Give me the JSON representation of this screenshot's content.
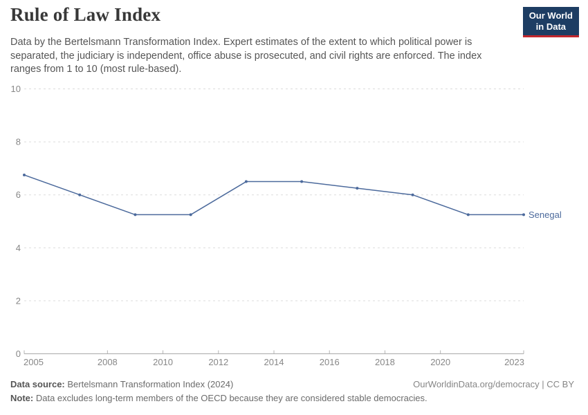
{
  "header": {
    "title": "Rule of Law Index",
    "subtitle": "Data by the Bertelsmann Transformation Index. Expert estimates of the extent to which political power is separated, the judiciary is independent, office abuse is prosecuted, and civil rights are enforced. The index ranges from 1 to 10 (most rule-based).",
    "logo": {
      "line1": "Our World",
      "line2": "in Data",
      "bg_color": "#1d3d63",
      "accent_color": "#c1272d"
    }
  },
  "chart_data": {
    "type": "line",
    "title": "Rule of Law Index",
    "xlabel": "",
    "ylabel": "",
    "xlim": [
      2005,
      2023
    ],
    "ylim": [
      0,
      10
    ],
    "x_ticks": [
      2005,
      2008,
      2010,
      2012,
      2014,
      2016,
      2018,
      2020,
      2023
    ],
    "y_ticks": [
      0,
      2,
      4,
      6,
      8,
      10
    ],
    "grid": "horizontal-dashed",
    "legend_position": "right-of-last-point",
    "series": [
      {
        "name": "Senegal",
        "color": "#4c6a9c",
        "x": [
          2005,
          2007,
          2009,
          2011,
          2013,
          2015,
          2017,
          2019,
          2021,
          2023
        ],
        "values": [
          6.75,
          6,
          5.25,
          5.25,
          6.5,
          6.5,
          6.25,
          6,
          5.25,
          5.25
        ]
      }
    ],
    "style_colors": {
      "gridline": "#dcdcdc",
      "axis_line": "#a8a8a8",
      "tick_mark": "#b3b3b3",
      "tick_label": "#878787"
    }
  },
  "footer": {
    "source_label": "Data source:",
    "source_value": "Bertelsmann Transformation Index (2024)",
    "note_label": "Note:",
    "note_value": "Data excludes long-term members of the OECD because they are considered stable democracies.",
    "citation": "OurWorldinData.org/democracy | CC BY"
  }
}
